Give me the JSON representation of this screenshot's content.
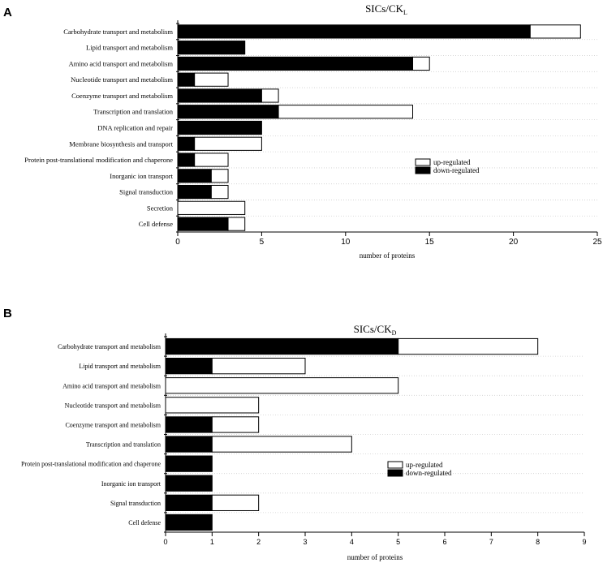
{
  "chart_data": [
    {
      "panel": "A",
      "type": "bar",
      "orientation": "horizontal",
      "stacked": true,
      "title": "SICs/CK",
      "title_subscript": "L",
      "xlabel": "number of proteins",
      "ylabel": "",
      "xlim": [
        0,
        25
      ],
      "xticks": [
        0,
        5,
        10,
        15,
        20,
        25
      ],
      "grid": "dotted horizontal",
      "legend_position": "right-middle",
      "categories": [
        "Carbohydrate transport and metabolism",
        "Lipid transport and metabolism",
        "Amino acid transport and metabolism",
        "Nucleotide transport and metabolism",
        "Coenzyme transport and metabolism",
        "Transcription and translation",
        "DNA replication and repair",
        "Membrane biosynthesis and transport",
        "Protein post-translational modification and  chaperone",
        "Inorganic ion transport",
        "Signal transduction",
        "Secretion",
        "Cell defense"
      ],
      "series": [
        {
          "name": "down-regulated",
          "color": "#000000",
          "values": [
            21,
            4,
            14,
            1,
            5,
            6,
            5,
            1,
            1,
            2,
            2,
            0,
            3
          ]
        },
        {
          "name": "up-regulated",
          "color": "#ffffff",
          "values": [
            3,
            0,
            1,
            2,
            1,
            8,
            0,
            4,
            2,
            1,
            1,
            4,
            1
          ]
        }
      ]
    },
    {
      "panel": "B",
      "type": "bar",
      "orientation": "horizontal",
      "stacked": true,
      "title": "SICs/CK",
      "title_subscript": "D",
      "xlabel": "number of proteins",
      "ylabel": "",
      "xlim": [
        0,
        9
      ],
      "xticks": [
        0,
        1,
        2,
        3,
        4,
        5,
        6,
        7,
        8,
        9
      ],
      "grid": "dotted horizontal",
      "legend_position": "right-middle",
      "categories": [
        "Carbohydrate transport and metabolism",
        "Lipid transport and metabolism",
        "Amino acid transport and metabolism",
        "Nucleotide transport and metabolism",
        "Coenzyme transport and metabolism",
        "Transcription and translation",
        "Protein post-translational modification and chaperone",
        "Inorganic ion transport",
        "Signal transduction",
        "Cell defense"
      ],
      "series": [
        {
          "name": "down-regulated",
          "color": "#000000",
          "values": [
            5,
            1,
            0,
            0,
            1,
            1,
            1,
            1,
            1,
            1
          ]
        },
        {
          "name": "up-regulated",
          "color": "#ffffff",
          "values": [
            3,
            2,
            5,
            2,
            1,
            3,
            0,
            0,
            1,
            0
          ]
        }
      ]
    }
  ]
}
